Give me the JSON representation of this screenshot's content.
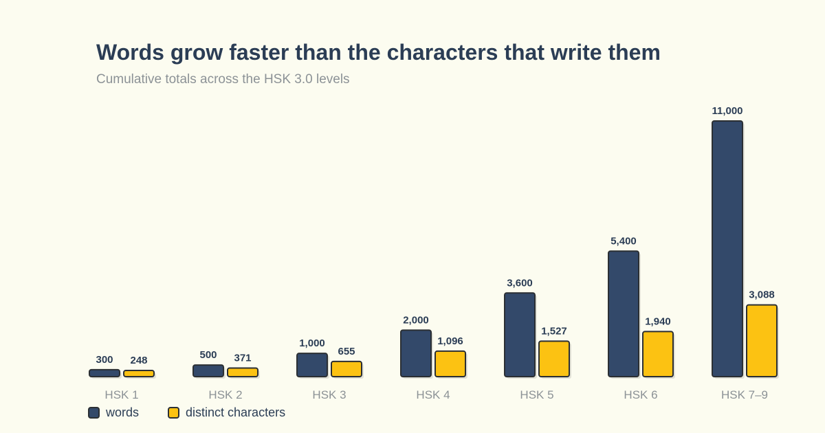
{
  "chart_data": {
    "type": "bar",
    "title": "Words grow faster than the characters that write them",
    "subtitle": "Cumulative totals across the HSK 3.0 levels",
    "categories": [
      "HSK 1",
      "HSK 2",
      "HSK 3",
      "HSK 4",
      "HSK 5",
      "HSK 6",
      "HSK 7–9"
    ],
    "series": [
      {
        "name": "words",
        "values": [
          300,
          500,
          1000,
          2000,
          3600,
          5400,
          11000
        ],
        "labels": [
          "300",
          "500",
          "1,000",
          "2,000",
          "3,600",
          "5,400",
          "11,000"
        ],
        "color": "#33496a"
      },
      {
        "name": "distinct characters",
        "values": [
          248,
          371,
          655,
          1096,
          1527,
          1940,
          3088
        ],
        "labels": [
          "248",
          "371",
          "655",
          "1,096",
          "1,527",
          "1,940",
          "3,088"
        ],
        "color": "#fcc212"
      }
    ],
    "ylim": [
      0,
      11000
    ],
    "grid": false,
    "legend_position": "bottom-left",
    "outline_color": "#2b2f33"
  }
}
